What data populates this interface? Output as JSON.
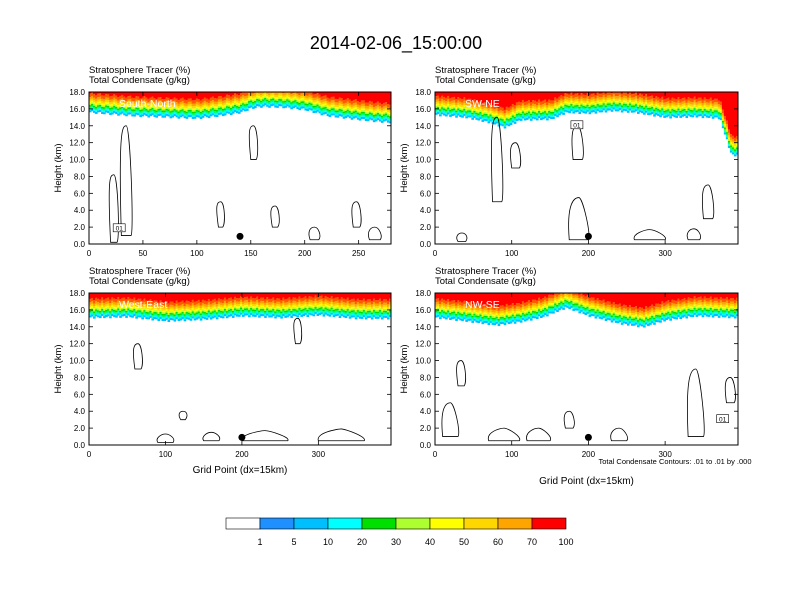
{
  "figure_title": "2014-02-06_15:00:00",
  "panel_header_line1": "Stratosphere Tracer   (%)",
  "panel_header_line2": "Total Condensate   (g/kg)",
  "ylabel": "Height (km)",
  "xlabel": "Grid Point (dx=15km)",
  "contour_note": "Total Condensate Contours: .01 to .01 by .000",
  "colorbar": {
    "labels": [
      "1",
      "5",
      "10",
      "20",
      "30",
      "40",
      "50",
      "60",
      "70",
      "100"
    ],
    "colors": [
      "#ffffff",
      "#1e90ff",
      "#00bfff",
      "#00ffff",
      "#00ff7f",
      "#00e000",
      "#adff2f",
      "#ffff00",
      "#ffd700",
      "#ffa500",
      "#ff5a00",
      "#ff0000"
    ]
  },
  "chart_data": [
    {
      "type": "heatmap",
      "name": "South-North",
      "xlim": [
        0,
        280
      ],
      "xticks": [
        0,
        50,
        100,
        150,
        200,
        250
      ],
      "ylim": [
        0,
        18
      ],
      "yticks": [
        0.0,
        2.0,
        4.0,
        6.0,
        8.0,
        10.0,
        12.0,
        14.0,
        16.0,
        18.0
      ],
      "marker_x": 140,
      "contour_labels": [
        {
          "text": "01",
          "x": 28,
          "y": 1.8
        }
      ],
      "tropopause_km": [
        [
          0,
          15.6
        ],
        [
          20,
          15.4
        ],
        [
          40,
          15.2
        ],
        [
          60,
          15.1
        ],
        [
          80,
          15.0
        ],
        [
          100,
          14.9
        ],
        [
          120,
          15.2
        ],
        [
          140,
          15.6
        ],
        [
          150,
          16.1
        ],
        [
          160,
          16.3
        ],
        [
          180,
          16.2
        ],
        [
          200,
          15.9
        ],
        [
          220,
          15.2
        ],
        [
          240,
          14.9
        ],
        [
          260,
          14.6
        ],
        [
          280,
          14.4
        ]
      ]
    },
    {
      "type": "heatmap",
      "name": "SW-NE",
      "xlim": [
        0,
        395
      ],
      "xticks": [
        0,
        100,
        200,
        300
      ],
      "ylim": [
        0,
        18
      ],
      "yticks": [
        0.0,
        2.0,
        4.0,
        6.0,
        8.0,
        10.0,
        12.0,
        14.0,
        16.0,
        18.0
      ],
      "marker_x": 200,
      "contour_labels": [
        {
          "text": "01",
          "x": 185,
          "y": 14.0
        }
      ],
      "tropopause_km": [
        [
          0,
          15.3
        ],
        [
          40,
          15.0
        ],
        [
          70,
          14.4
        ],
        [
          90,
          13.8
        ],
        [
          110,
          14.7
        ],
        [
          150,
          14.8
        ],
        [
          170,
          15.6
        ],
        [
          200,
          15.5
        ],
        [
          230,
          15.8
        ],
        [
          260,
          15.6
        ],
        [
          300,
          15.0
        ],
        [
          340,
          15.1
        ],
        [
          370,
          14.9
        ],
        [
          385,
          10.6
        ],
        [
          395,
          10.4
        ]
      ]
    },
    {
      "type": "heatmap",
      "name": "West-East",
      "xlim": [
        0,
        395
      ],
      "xticks": [
        0,
        100,
        200,
        300
      ],
      "ylim": [
        0,
        18
      ],
      "yticks": [
        0.0,
        2.0,
        4.0,
        6.0,
        8.0,
        10.0,
        12.0,
        14.0,
        16.0,
        18.0
      ],
      "marker_x": 200,
      "contour_labels": [],
      "tropopause_km": [
        [
          0,
          15.1
        ],
        [
          50,
          15.2
        ],
        [
          100,
          14.7
        ],
        [
          150,
          14.9
        ],
        [
          200,
          15.3
        ],
        [
          250,
          15.1
        ],
        [
          300,
          15.4
        ],
        [
          350,
          15.0
        ],
        [
          395,
          15.0
        ]
      ]
    },
    {
      "type": "heatmap",
      "name": "NW-SE",
      "xlim": [
        0,
        395
      ],
      "xticks": [
        0,
        100,
        200,
        300
      ],
      "ylim": [
        0,
        18
      ],
      "yticks": [
        0.0,
        2.0,
        4.0,
        6.0,
        8.0,
        10.0,
        12.0,
        14.0,
        16.0,
        18.0
      ],
      "marker_x": 200,
      "contour_labels": [
        {
          "text": "01",
          "x": 375,
          "y": 3.0
        }
      ],
      "tropopause_km": [
        [
          0,
          15.1
        ],
        [
          40,
          14.7
        ],
        [
          80,
          14.2
        ],
        [
          110,
          14.6
        ],
        [
          140,
          15.2
        ],
        [
          170,
          16.3
        ],
        [
          200,
          15.3
        ],
        [
          240,
          14.4
        ],
        [
          270,
          14.0
        ],
        [
          300,
          14.8
        ],
        [
          340,
          15.3
        ],
        [
          395,
          15.1
        ]
      ]
    }
  ]
}
